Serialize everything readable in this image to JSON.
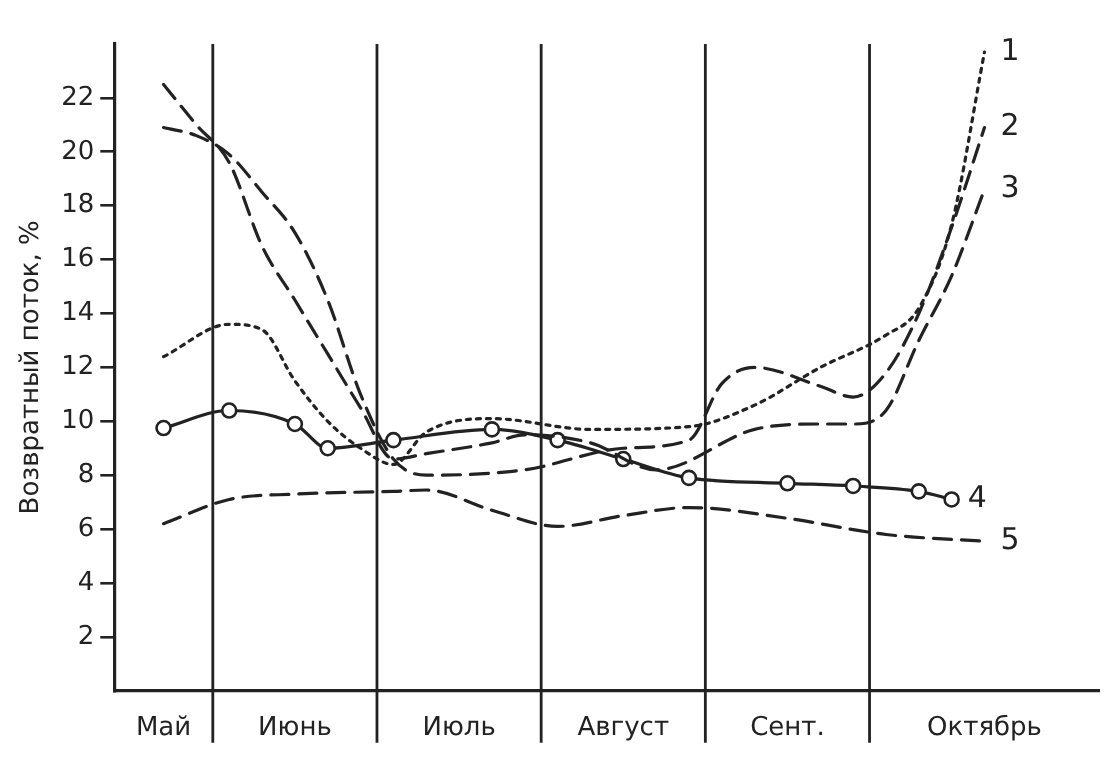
{
  "chart_data": {
    "type": "line",
    "ylabel": "Возвратный поток, %",
    "categories": [
      null,
      "Май",
      null,
      null,
      null,
      "Июнь",
      null,
      null,
      null,
      null,
      "Июль",
      null,
      null,
      null,
      null,
      "Август",
      null,
      null,
      null,
      null,
      "Сент.",
      null,
      null,
      null,
      null,
      null,
      "Октябрь",
      null,
      null,
      null
    ],
    "ylim": [
      0,
      24
    ],
    "yticks": [
      2,
      4,
      6,
      8,
      10,
      12,
      14,
      16,
      18,
      20,
      22
    ],
    "grid": "x",
    "legend": false,
    "series": [
      {
        "name": "1",
        "color": "#222222",
        "line_style": "dotted",
        "marker": "none",
        "values": [
          null,
          12.4,
          null,
          13.6,
          13.4,
          11.5,
          10.0,
          9.0,
          8.4,
          9.6,
          null,
          10.1,
          null,
          null,
          9.7,
          null,
          null,
          9.8,
          null,
          10.6,
          null,
          12.0,
          null,
          13.2,
          14.2,
          17.3,
          23.7,
          null,
          null,
          null
        ]
      },
      {
        "name": "2",
        "color": "#222222",
        "line_style": "dashed",
        "marker": "none",
        "values": [
          null,
          20.9,
          20.6,
          19.9,
          18.5,
          17.0,
          14.5,
          11.0,
          8.6,
          8.0,
          null,
          null,
          8.2,
          null,
          null,
          9.0,
          null,
          9.3,
          11.4,
          12.0,
          null,
          11.3,
          10.9,
          11.8,
          14.0,
          17.2,
          20.9,
          null,
          null,
          null
        ]
      },
      {
        "name": "3",
        "color": "#222222",
        "line_style": "dashed",
        "marker": "none",
        "values": [
          null,
          22.5,
          21.0,
          19.6,
          16.5,
          14.5,
          12.5,
          10.5,
          8.6,
          8.8,
          null,
          9.2,
          9.5,
          null,
          9.2,
          null,
          8.2,
          null,
          null,
          9.7,
          null,
          9.9,
          9.9,
          10.4,
          13.0,
          15.4,
          18.6,
          null,
          null,
          null
        ]
      },
      {
        "name": "4",
        "color": "#222222",
        "line_style": "solid",
        "marker": "circle",
        "values": [
          null,
          9.75,
          null,
          10.4,
          null,
          9.9,
          9.0,
          null,
          9.3,
          null,
          null,
          9.7,
          null,
          9.3,
          null,
          8.6,
          null,
          7.9,
          null,
          null,
          7.7,
          null,
          7.6,
          null,
          7.4,
          7.1,
          null,
          null,
          null,
          null
        ]
      },
      {
        "name": "5",
        "color": "#222222",
        "line_style": "dashed",
        "marker": "none",
        "values": [
          null,
          6.2,
          null,
          7.1,
          null,
          7.3,
          null,
          null,
          7.4,
          7.45,
          null,
          6.7,
          null,
          6.1,
          null,
          6.5,
          null,
          6.8,
          null,
          null,
          6.4,
          null,
          null,
          5.8,
          null,
          null,
          5.55,
          null,
          null,
          null
        ]
      }
    ]
  }
}
